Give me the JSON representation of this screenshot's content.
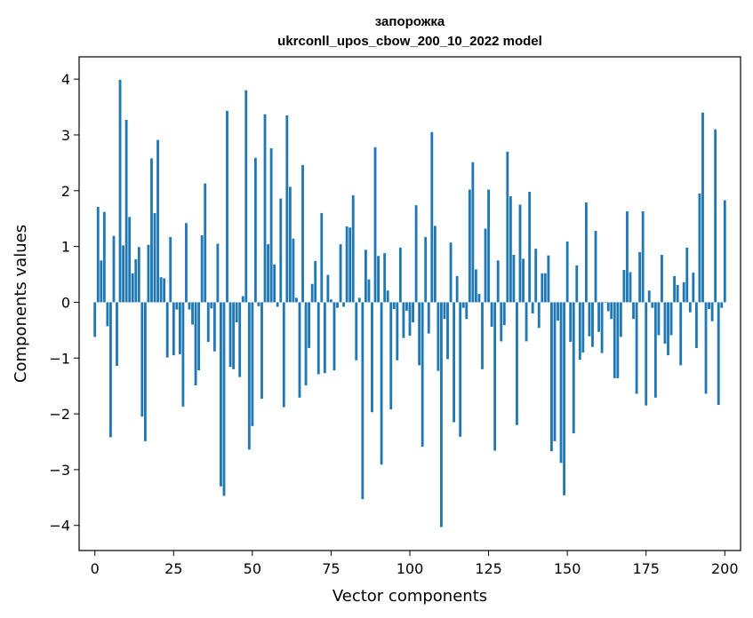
{
  "chart_data": {
    "type": "bar",
    "title": "запорожка",
    "subtitle": "ukrconll_upos_cbow_200_10_2022 model",
    "xlabel": "Vector components",
    "ylabel": "Components values",
    "xlim": [
      -5,
      205
    ],
    "ylim": [
      -4.45,
      4.4
    ],
    "xticks": [
      0,
      25,
      50,
      75,
      100,
      125,
      150,
      175,
      200
    ],
    "yticks": [
      -4,
      -3,
      -2,
      -1,
      0,
      1,
      2,
      3,
      4
    ],
    "bar_color": "#1f77b4",
    "grid": false,
    "legend": "none",
    "values": [
      -0.62,
      1.71,
      0.75,
      1.62,
      -0.43,
      -2.42,
      1.19,
      -1.14,
      3.99,
      1.02,
      3.27,
      1.53,
      0.52,
      0.77,
      0.99,
      -2.05,
      -2.49,
      1.03,
      2.58,
      1.6,
      2.91,
      0.45,
      0.43,
      -0.99,
      1.17,
      -0.95,
      -0.13,
      -0.93,
      -1.87,
      1.42,
      -0.13,
      -0.4,
      -1.49,
      -1.22,
      1.2,
      2.13,
      -0.71,
      -0.11,
      -0.88,
      1.05,
      -3.3,
      -3.47,
      3.43,
      -1.16,
      -1.2,
      -0.36,
      -1.34,
      0.11,
      3.8,
      -2.64,
      -2.22,
      2.59,
      -0.07,
      -1.73,
      3.37,
      1.04,
      2.76,
      0.68,
      -0.08,
      1.86,
      -1.88,
      3.35,
      2.07,
      1.14,
      0.08,
      -1.71,
      2.46,
      -1.49,
      -0.82,
      0.33,
      0.74,
      -1.29,
      1.6,
      -1.27,
      0.49,
      0.05,
      -1.22,
      -0.1,
      1.04,
      -0.08,
      1.36,
      1.34,
      1.92,
      -1.04,
      0.08,
      -3.53,
      0.94,
      0.41,
      -1.97,
      2.78,
      0.83,
      -2.91,
      0.88,
      0.21,
      -1.92,
      -0.12,
      -1.04,
      0.98,
      -0.64,
      -0.15,
      -0.6,
      -0.36,
      1.74,
      -1.13,
      -2.59,
      1.17,
      -0.56,
      3.05,
      1.37,
      -1.23,
      -4.03,
      -0.3,
      -1.02,
      1.07,
      -2.15,
      0.47,
      -2.41,
      -0.1,
      -0.3,
      2.02,
      2.51,
      0.59,
      0.15,
      -1.2,
      1.32,
      2.02,
      -0.44,
      -2.66,
      0.75,
      -0.7,
      -0.41,
      2.7,
      1.9,
      0.85,
      -2.2,
      1.75,
      0.78,
      -0.7,
      1.98,
      -0.2,
      0.96,
      -0.46,
      0.52,
      0.52,
      0.84,
      -2.67,
      -2.49,
      -0.33,
      -2.88,
      -3.46,
      1.09,
      -0.71,
      -2.35,
      0.66,
      -1.03,
      -0.9,
      1.79,
      -0.61,
      -0.8,
      1.28,
      -0.53,
      -0.91,
      -0.01,
      -0.16,
      -0.3,
      -1.36,
      -1.36,
      -0.62,
      0.58,
      1.63,
      0.54,
      -0.3,
      -1.64,
      0.9,
      1.63,
      -1.85,
      0.21,
      -0.1,
      -1.71,
      -0.59,
      0.85,
      -0.74,
      -0.95,
      -0.59,
      0.47,
      0.31,
      -1.13,
      0.36,
      0.98,
      -0.18,
      0.53,
      -0.82,
      1.95,
      3.4,
      -1.64,
      -0.12,
      -0.34,
      3.1,
      -1.84,
      -0.1,
      1.83
    ]
  }
}
